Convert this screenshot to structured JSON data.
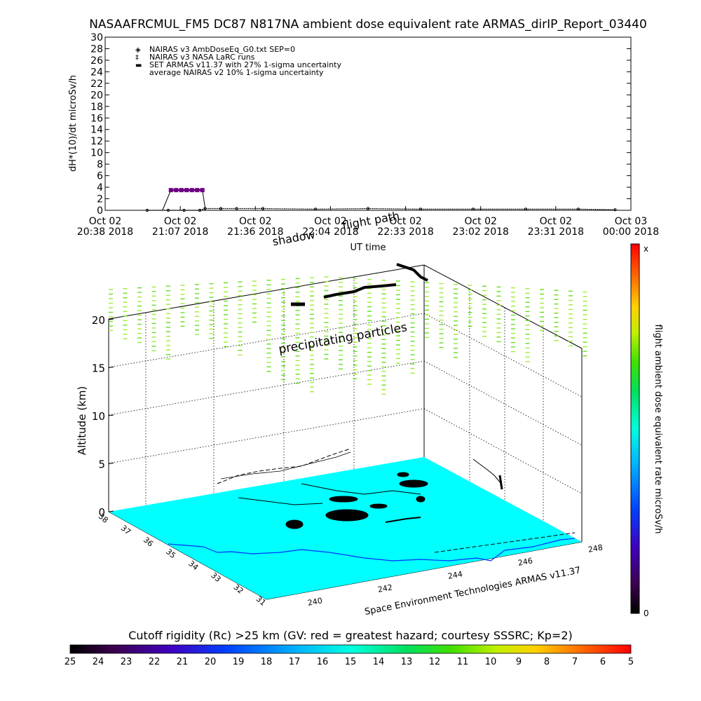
{
  "chart_data": [
    {
      "type": "line",
      "title": "NASAAFRCMUL_FM5 DC87 N817NA ambient dose equivalent rate ARMAS_dirIP_Report_03440",
      "xlabel": "UT time",
      "ylabel": "dH*(10)/dt microSv/h",
      "ylim": [
        0,
        30
      ],
      "yticks": [
        "0",
        "2",
        "4",
        "6",
        "8",
        "10",
        "12",
        "14",
        "16",
        "18",
        "20",
        "22",
        "24",
        "26",
        "28",
        "30"
      ],
      "xticks": [
        {
          "line1": "Oct 02",
          "line2": "20:38 2018"
        },
        {
          "line1": "Oct 02",
          "line2": "21:07 2018"
        },
        {
          "line1": "Oct 02",
          "line2": "21:36 2018"
        },
        {
          "line1": "Oct 02",
          "line2": "22:04 2018"
        },
        {
          "line1": "Oct 02",
          "line2": "22:33 2018"
        },
        {
          "line1": "Oct 02",
          "line2": "23:02 2018"
        },
        {
          "line1": "Oct 02",
          "line2": "23:31 2018"
        },
        {
          "line1": "Oct 03",
          "line2": "00:00 2018"
        }
      ],
      "legend": [
        {
          "symbol": "◈",
          "label": "NAIRAS v3 AmbDoseEq_G0.txt SEP=0"
        },
        {
          "symbol": "‡",
          "label": "NAIRAS v3 NASA LaRC runs"
        },
        {
          "symbol": "▬",
          "label": "SET ARMAS v11.37 with 27% 1-sigma uncertainty"
        },
        {
          "symbol": "",
          "label": "average NAIRAS v2 10% 1-sigma uncertainty"
        }
      ],
      "legend_position": "top-left",
      "series": [
        {
          "x_fraction": [
            0.08,
            0.12,
            0.15,
            0.18,
            0.19,
            0.22,
            0.25,
            0.3,
            0.4,
            0.5,
            0.6,
            0.7,
            0.8,
            0.9,
            0.97
          ],
          "values": [
            0.0,
            0.0,
            0.0,
            0.0,
            0.3,
            0.3,
            0.3,
            0.3,
            0.2,
            0.3,
            0.2,
            0.2,
            0.2,
            0.2,
            0.1
          ]
        },
        {
          "x_fraction": [
            0.125,
            0.135,
            0.145,
            0.155,
            0.165,
            0.175,
            0.185
          ],
          "values": [
            3.5,
            3.5,
            3.5,
            3.5,
            3.5,
            3.5,
            3.5
          ]
        }
      ]
    },
    {
      "type": "scatter",
      "zlabel": "Altitude (km)",
      "zticks": [
        "0",
        "5",
        "10",
        "15",
        "20"
      ],
      "lat_ticks": [
        "38",
        "37",
        "36",
        "35",
        "34",
        "33",
        "32",
        "31"
      ],
      "lon_ticks": [
        "240",
        "242",
        "244",
        "246",
        "248"
      ],
      "annotation_flight": "flight path",
      "annotation_shadow": "shadow",
      "annotation_particles": "precipitating particles",
      "credit": "Space Environment Technologies ARMAS v11.37",
      "colorbar_label": "flight ambient dose equivalent rate microSv/h",
      "colorbar_top": "x",
      "colorbar_bottom": "0",
      "map_color": "#00ffff"
    },
    {
      "type": "heatmap",
      "title": "Cutoff rigidity (Rc) >25 km (GV: red = greatest hazard; courtesy SSSRC; Kp=2)",
      "ticks": [
        "25",
        "24",
        "23",
        "22",
        "21",
        "20",
        "19",
        "18",
        "17",
        "16",
        "15",
        "14",
        "13",
        "12",
        "11",
        "10",
        "9",
        "8",
        "7",
        "6",
        "5"
      ]
    }
  ]
}
